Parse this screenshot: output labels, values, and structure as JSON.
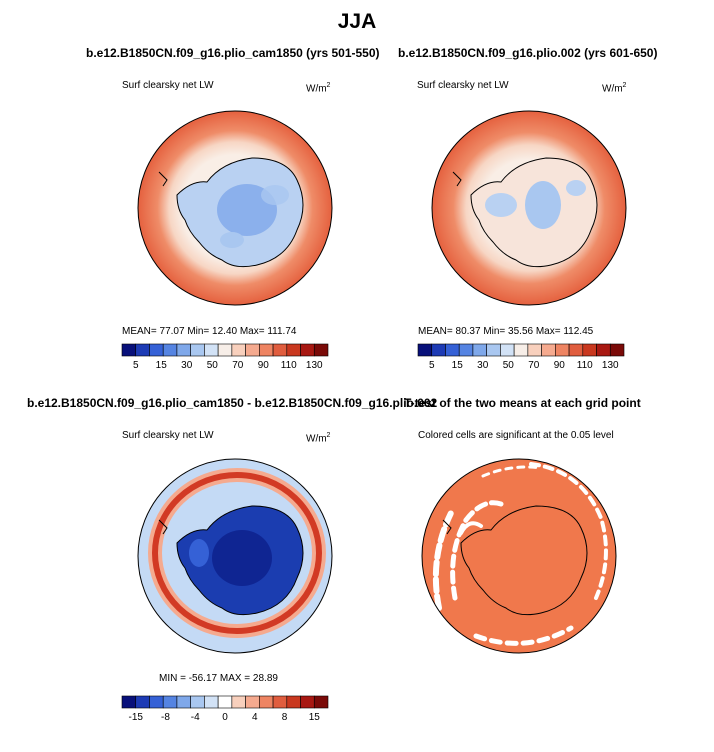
{
  "page": {
    "title": "JJA"
  },
  "panels": [
    {
      "id": "p1",
      "title": "b.e12.B1850CN.f09_g16.plio_cam1850 (yrs 501-550)",
      "variable_label": "Surf clearsky net LW",
      "units": "W/m",
      "units_sup": "2",
      "stats": "MEAN=  77.07  Min=  12.40  Max= 111.74",
      "colorbar": {
        "labels": [
          "5",
          "15",
          "30",
          "50",
          "70",
          "90",
          "110",
          "130"
        ],
        "colors": [
          "#08107a",
          "#1d3bb5",
          "#3561d6",
          "#5584e2",
          "#7fa8ea",
          "#a9c7f0",
          "#d2e2f6",
          "#f7eee8",
          "#f8d0bd",
          "#f5aa8f",
          "#ee8462",
          "#e05d3e",
          "#c9381f",
          "#a81812",
          "#7a0a08"
        ]
      }
    },
    {
      "id": "p2",
      "title": "b.e12.B1850CN.f09_g16.plio.002 (yrs 601-650)",
      "variable_label": "Surf clearsky net LW",
      "units": "W/m",
      "units_sup": "2",
      "stats": "MEAN=  80.37  Min=  35.56  Max= 112.45",
      "colorbar": {
        "labels": [
          "5",
          "15",
          "30",
          "50",
          "70",
          "90",
          "110",
          "130"
        ],
        "colors": [
          "#08107a",
          "#1d3bb5",
          "#3561d6",
          "#5584e2",
          "#7fa8ea",
          "#a9c7f0",
          "#d2e2f6",
          "#f7eee8",
          "#f8d0bd",
          "#f5aa8f",
          "#ee8462",
          "#e05d3e",
          "#c9381f",
          "#a81812",
          "#7a0a08"
        ]
      }
    },
    {
      "id": "p3",
      "title": "b.e12.B1850CN.f09_g16.plio_cam1850 - b.e12.B1850CN.f09_g16.plio.002",
      "variable_label": "Surf clearsky net LW",
      "units": "W/m",
      "units_sup": "2",
      "stats": "MIN = -56.17  MAX =  28.89",
      "colorbar": {
        "labels": [
          "-15",
          "-8",
          "-4",
          "0",
          "4",
          "8",
          "15"
        ],
        "colors": [
          "#08107a",
          "#1d3bb5",
          "#3561d6",
          "#5584e2",
          "#7fa8ea",
          "#a9c7f0",
          "#d2e2f6",
          "#ffffff",
          "#f8d0bd",
          "#f5aa8f",
          "#ee8462",
          "#e05d3e",
          "#c9381f",
          "#a81812",
          "#7a0a08"
        ]
      }
    },
    {
      "id": "p4",
      "title": "T-test of the two means at each grid point",
      "variable_label": "Colored cells are significant at the 0.05 level"
    }
  ],
  "colors": {
    "ocean_mid": "#ef8c68",
    "ocean_edge": "#e5613f",
    "ring_light": "#f7d6c4",
    "ring_pale": "#f9eee6",
    "land_blue": "#b9d1f2",
    "land_deep": "#7fa8ea",
    "diff_bg": "#c4daf5",
    "diff_ring": "#d23a24",
    "diff_land": "#1b3db0",
    "ttest_fill": "#f0784c"
  }
}
